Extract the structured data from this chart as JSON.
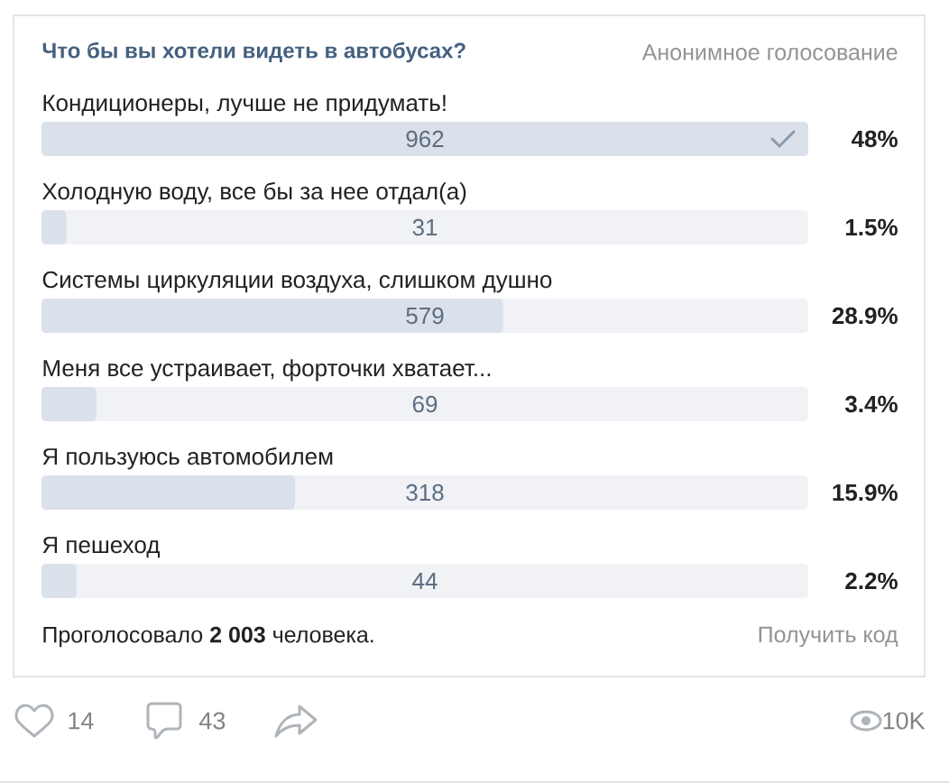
{
  "chart_data": {
    "type": "bar",
    "orientation": "horizontal",
    "title": "Что бы вы хотели видеть в автобусах?",
    "categories": [
      "Кондиционеры, лучше не придумать!",
      "Холодную воду, все бы за нее отдал(а)",
      "Системы циркуляции воздуха, слишком душно",
      "Меня все устраивает, форточки хватает...",
      "Я пользуюсь автомобилем",
      "Я пешеход"
    ],
    "values": [
      962,
      31,
      579,
      69,
      318,
      44
    ],
    "data_labels": true,
    "color": "#dae1ea",
    "tick_labels": "y",
    "annotations": [
      "Анонимное голосование",
      "Проголосовало **2 003** человека.",
      "Получить код",
      "14",
      "43",
      "10K",
      "48%",
      "1.5%",
      "28.9%",
      "3.4%",
      "15.9%",
      "2.2%"
    ]
  }
}
